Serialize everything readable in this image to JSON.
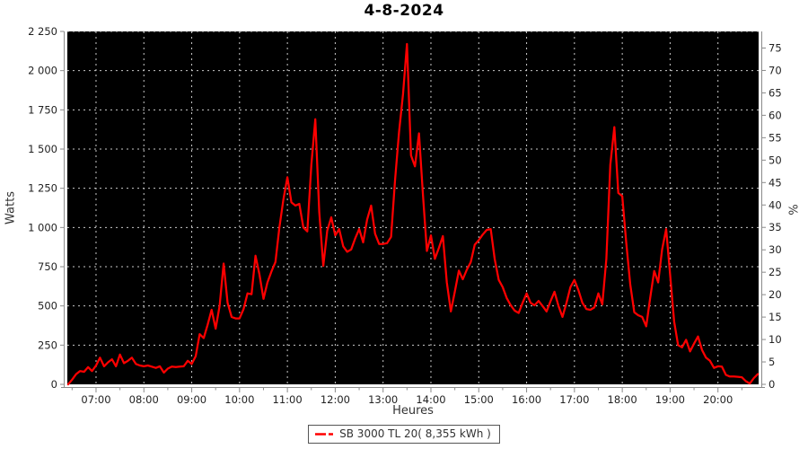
{
  "header": {
    "title": "4-8-2024"
  },
  "axes_text": {
    "xlabel": "Heures",
    "ylabel_left": "Watts",
    "ylabel_right": "%"
  },
  "legend": {
    "label": "SB 3000 TL 20( 8,355 kWh )",
    "marker_color": "#ff0000"
  },
  "chart_data": {
    "type": "line",
    "title": "4-8-2024",
    "xlabel": "Heures",
    "ylabel_left": "Watts",
    "ylabel_right": "%",
    "plot_bg": "#000000",
    "grid": true,
    "grid_color": "#c9c9c9",
    "axis_color": "#8a8a8a",
    "tick_text_color": "#222222",
    "x_range_minutes": [
      384,
      1251
    ],
    "x_tick_hours": [
      7,
      8,
      9,
      10,
      11,
      12,
      13,
      14,
      15,
      16,
      17,
      18,
      19,
      20
    ],
    "x_tick_labels": [
      "07:00",
      "08:00",
      "09:00",
      "10:00",
      "11:00",
      "12:00",
      "13:00",
      "14:00",
      "15:00",
      "16:00",
      "17:00",
      "18:00",
      "19:00",
      "20:00"
    ],
    "ylim_left": [
      0,
      2250
    ],
    "y_left_tick_values": [
      0,
      250,
      500,
      750,
      1000,
      1250,
      1500,
      1750,
      2000,
      2250
    ],
    "y_left_tick_labels": [
      "0",
      "250",
      "500",
      "750",
      "1 000",
      "1 250",
      "1 500",
      "1 750",
      "2 000",
      "2 250"
    ],
    "ylim_right": [
      0,
      78.7
    ],
    "y_right_tick_values": [
      0,
      5,
      10,
      15,
      20,
      25,
      30,
      35,
      40,
      45,
      50,
      55,
      60,
      65,
      70,
      75
    ],
    "legend_position": "bottom-center",
    "series": [
      {
        "name": "SB 3000 TL 20( 8,355 kWh )",
        "color": "#ff0000",
        "start_time": "06:25",
        "end_time": "20:50",
        "step_minutes": 5,
        "watts": [
          0,
          30,
          65,
          85,
          80,
          110,
          85,
          120,
          170,
          115,
          140,
          160,
          115,
          190,
          135,
          150,
          170,
          130,
          120,
          115,
          120,
          113,
          105,
          115,
          75,
          100,
          113,
          110,
          113,
          115,
          150,
          130,
          180,
          320,
          295,
          380,
          475,
          355,
          500,
          770,
          520,
          430,
          420,
          420,
          480,
          580,
          575,
          820,
          700,
          545,
          650,
          720,
          780,
          1000,
          1180,
          1320,
          1160,
          1140,
          1150,
          1000,
          975,
          1400,
          1690,
          1100,
          755,
          980,
          1065,
          950,
          990,
          880,
          845,
          860,
          930,
          990,
          905,
          1050,
          1140,
          960,
          895,
          895,
          900,
          940,
          1300,
          1610,
          1850,
          2170,
          1460,
          1390,
          1600,
          1210,
          850,
          950,
          800,
          870,
          945,
          650,
          465,
          590,
          725,
          670,
          730,
          780,
          890,
          920,
          955,
          985,
          990,
          800,
          666,
          620,
          550,
          505,
          470,
          455,
          520,
          580,
          520,
          504,
          532,
          500,
          465,
          530,
          590,
          500,
          430,
          520,
          620,
          666,
          600,
          520,
          480,
          475,
          490,
          580,
          510,
          800,
          1400,
          1640,
          1220,
          1200,
          900,
          637,
          460,
          440,
          430,
          370,
          550,
          723,
          650,
          860,
          990,
          700,
          400,
          250,
          236,
          284,
          210,
          260,
          305,
          220,
          170,
          150,
          105,
          115,
          113,
          60,
          50,
          50,
          48,
          45,
          20,
          5,
          40,
          65
        ]
      }
    ]
  }
}
